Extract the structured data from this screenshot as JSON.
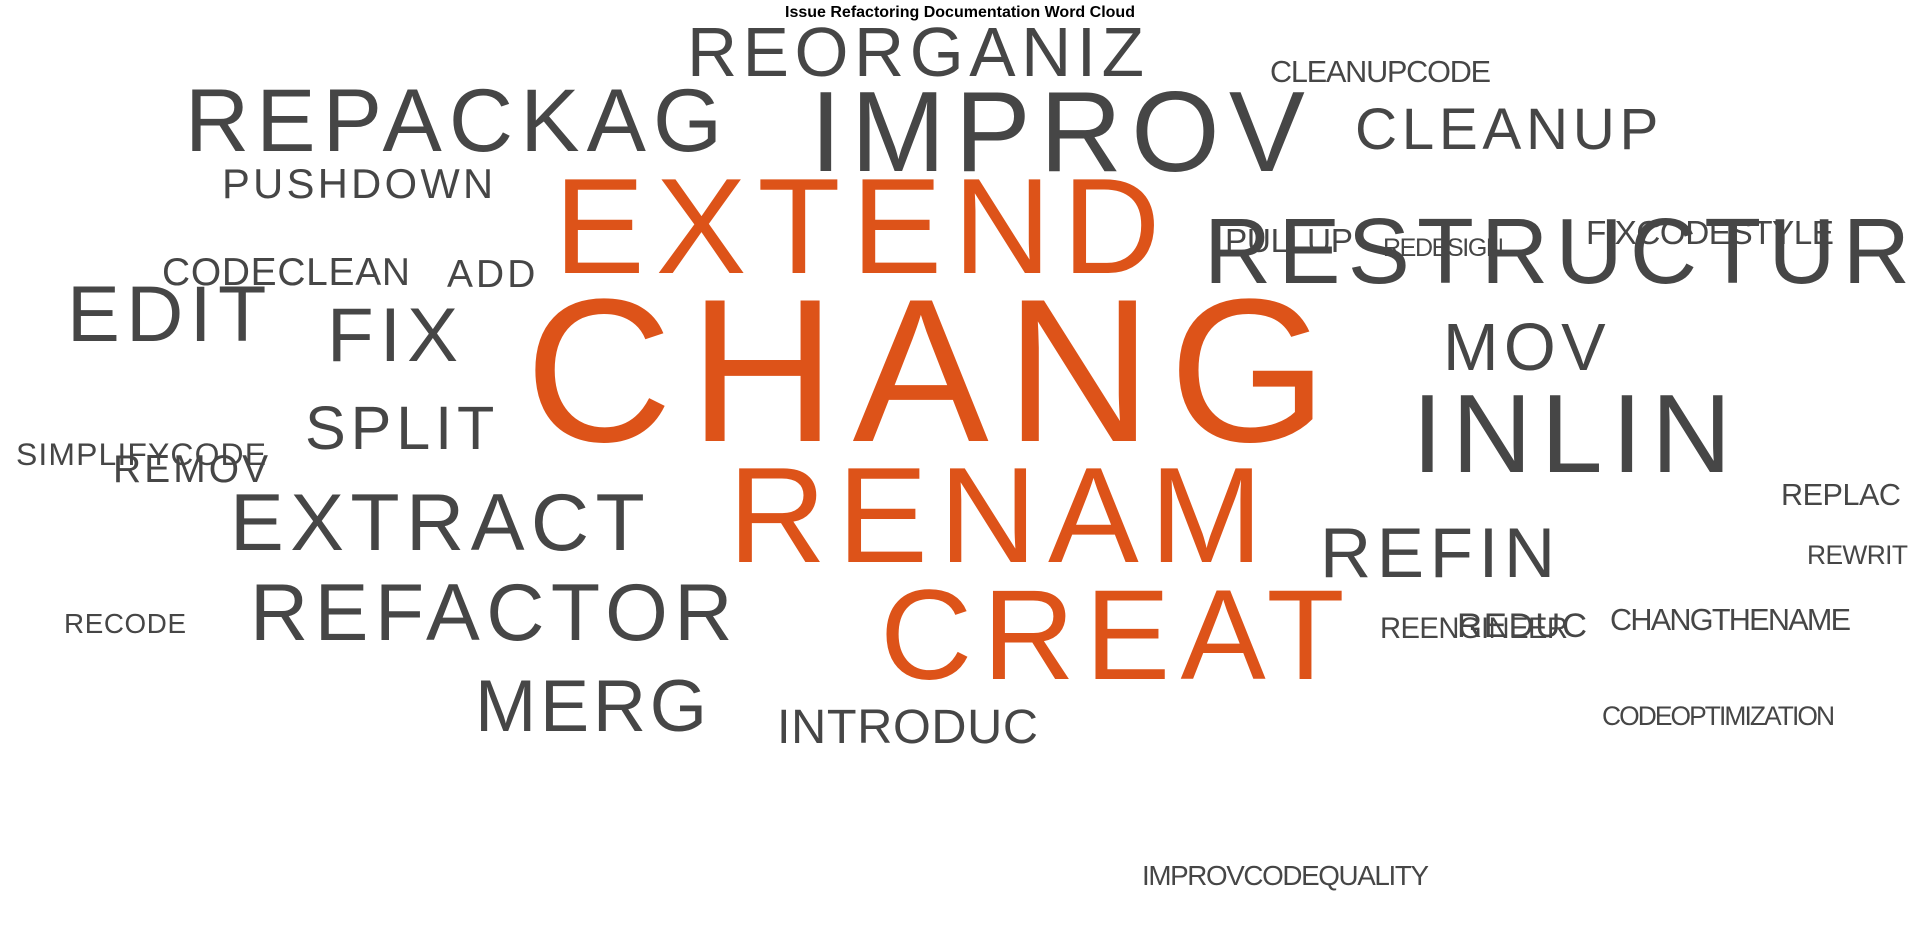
{
  "title": "Issue Refactoring Documentation Word Cloud",
  "colors": {
    "highlight": "#DD5319",
    "default": "#464646"
  },
  "words": [
    {
      "text": "CHANG",
      "highlight": true
    },
    {
      "text": "EXTEND",
      "highlight": true
    },
    {
      "text": "RENAM",
      "highlight": true
    },
    {
      "text": "CREAT",
      "highlight": true
    },
    {
      "text": "IMPROV",
      "highlight": false
    },
    {
      "text": "RESTRUCTUR",
      "highlight": false
    },
    {
      "text": "INLIN",
      "highlight": false
    },
    {
      "text": "REPACKAG",
      "highlight": false
    },
    {
      "text": "REORGANIZ",
      "highlight": false
    },
    {
      "text": "REFACTOR",
      "highlight": false
    },
    {
      "text": "EXTRACT",
      "highlight": false
    },
    {
      "text": "EDIT",
      "highlight": false
    },
    {
      "text": "MERG",
      "highlight": false
    },
    {
      "text": "REFIN",
      "highlight": false
    },
    {
      "text": "MOV",
      "highlight": false
    },
    {
      "text": "CLEANUP",
      "highlight": false
    },
    {
      "text": "FIX",
      "highlight": false
    },
    {
      "text": "SPLIT",
      "highlight": false
    },
    {
      "text": "INTRODUC",
      "highlight": false
    },
    {
      "text": "PUSHDOWN",
      "highlight": false
    },
    {
      "text": "REMOV",
      "highlight": false
    },
    {
      "text": "ADD",
      "highlight": false
    },
    {
      "text": "CODECLEAN",
      "highlight": false
    },
    {
      "text": "REDUC",
      "highlight": false
    },
    {
      "text": "SIMPLIFYCODE",
      "highlight": false
    },
    {
      "text": "PULLUP",
      "highlight": false
    },
    {
      "text": "FIXCODESTYLE",
      "highlight": false
    },
    {
      "text": "CLEANUPCODE",
      "highlight": false
    },
    {
      "text": "REPLAC",
      "highlight": false
    },
    {
      "text": "CHANGTHENAME",
      "highlight": false
    },
    {
      "text": "REENGINEER",
      "highlight": false
    },
    {
      "text": "RECODE",
      "highlight": false
    },
    {
      "text": "REWRIT",
      "highlight": false
    },
    {
      "text": "CODEOPTIMIZATION",
      "highlight": false
    },
    {
      "text": "IMPROVCODEQUALITY",
      "highlight": false
    },
    {
      "text": "REDESIGN",
      "highlight": false
    }
  ]
}
